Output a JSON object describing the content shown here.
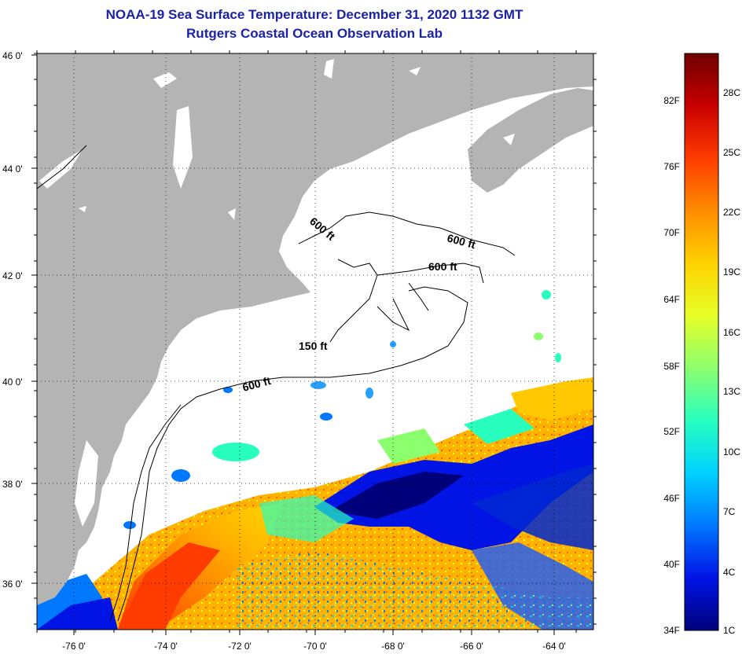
{
  "header": {
    "title": "NOAA-19 Sea Surface Temperature:  December 31, 2020 1132 GMT",
    "subtitle": "Rutgers Coastal Ocean Observation Lab"
  },
  "map": {
    "lon_ticks": [
      "-76 0'",
      "-74 0'",
      "-72 0'",
      "-70 0'",
      "-68 0'",
      "-66 0'",
      "-64 0'"
    ],
    "lat_ticks": [
      "46 0'",
      "44 0'",
      "42 0'",
      "40 0'",
      "38 0'",
      "36 0'"
    ],
    "contour_labels": [
      "600 ft",
      "600 ft",
      "600 ft",
      "150 ft",
      "600 ft"
    ],
    "land_color": "#b4b4b4",
    "cloud_color": "#ffffff"
  },
  "colorbar": {
    "fahrenheit": [
      "82F",
      "76F",
      "70F",
      "64F",
      "58F",
      "52F",
      "46F",
      "40F",
      "34F"
    ],
    "celsius": [
      "28C",
      "25C",
      "22C",
      "19C",
      "16C",
      "13C",
      "10C",
      "7C",
      "4C",
      "1C"
    ],
    "colors": [
      "#6e0000",
      "#c80000",
      "#ff3c00",
      "#ff8c00",
      "#ffd200",
      "#e6ff28",
      "#8cff6e",
      "#28ffbe",
      "#00d2ff",
      "#0078ff",
      "#0014e6",
      "#00007a"
    ]
  }
}
